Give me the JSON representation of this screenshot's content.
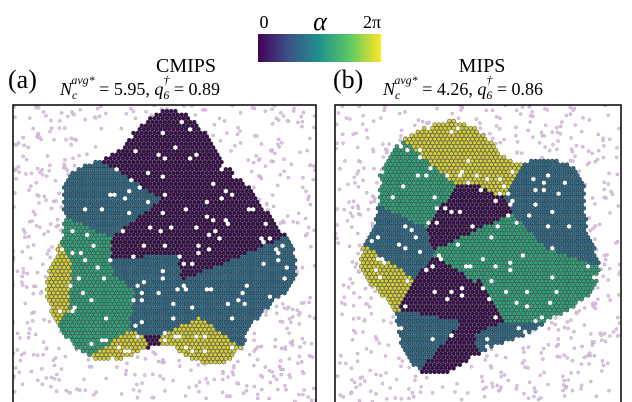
{
  "colorbar": {
    "min_label": "0",
    "symbol": "α",
    "max_label": "2π"
  },
  "panels": [
    {
      "label": "(a)",
      "title": "CMIPS",
      "subtitle": [
        {
          "text": "N",
          "style": "italic"
        },
        {
          "text": "c",
          "style": "sub"
        },
        {
          "text": "avg*",
          "style": "sup"
        },
        {
          "text": " = 5.95, ",
          "style": "normal"
        },
        {
          "text": "q",
          "style": "italic"
        },
        {
          "text": "6",
          "style": "sub"
        },
        {
          "text": "†",
          "style": "sup"
        },
        {
          "text": " = 0.89",
          "style": "normal"
        }
      ]
    },
    {
      "label": "(b)",
      "title": "MIPS",
      "subtitle": [
        {
          "text": "N",
          "style": "italic"
        },
        {
          "text": "c",
          "style": "sub"
        },
        {
          "text": "avg*",
          "style": "sup"
        },
        {
          "text": " = 4.26, ",
          "style": "normal"
        },
        {
          "text": "q",
          "style": "italic"
        },
        {
          "text": "6",
          "style": "sub"
        },
        {
          "text": "†",
          "style": "sup"
        },
        {
          "text": " = 0.86",
          "style": "normal"
        }
      ]
    }
  ]
}
